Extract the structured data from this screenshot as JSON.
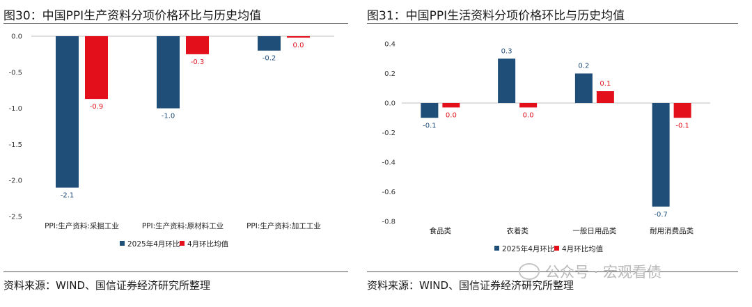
{
  "colors": {
    "series_current": "#1f4e79",
    "series_avg": "#e3101c",
    "axis": "#bfbfbf"
  },
  "left": {
    "title": "图30：中国PPI生产资料分项价格环比与历史均值",
    "source": "资料来源：WIND、国信证券经济研究所整理"
  },
  "right": {
    "title": "图31：中国PPI生活资料分项价格环比与历史均值",
    "source": "资料来源：WIND、国信证券经济研究所整理"
  },
  "watermark": {
    "text": "公众号 · 宏观看债",
    "icon": "wechat-icon"
  },
  "chart_data": [
    {
      "type": "bar",
      "categories": [
        "PPI:生产资料:采掘工业",
        "PPI:生产资料:原材料工业",
        "PPI:生产资料:加工工业"
      ],
      "series": [
        {
          "name": "2025年4月环比",
          "values": [
            -2.1,
            -1.0,
            -0.2
          ],
          "labels": [
            "-2.1",
            "-1.0",
            "-0.2"
          ]
        },
        {
          "name": "4月环比均值",
          "values": [
            -0.87,
            -0.25,
            -0.02
          ],
          "labels": [
            "-0.9",
            "-0.3",
            "0.0"
          ]
        }
      ],
      "ylim": [
        -2.5,
        0.0
      ],
      "yticks": [
        "0.0",
        "-0.5",
        "-1.0",
        "-1.5",
        "-2.0",
        "-2.5"
      ],
      "legend_position": "bottom"
    },
    {
      "type": "bar",
      "categories": [
        "食品类",
        "衣着类",
        "一般日用品类",
        "耐用消费品类"
      ],
      "series": [
        {
          "name": "2025年4月环比",
          "values": [
            -0.1,
            0.3,
            0.2,
            -0.7
          ],
          "labels": [
            "-0.1",
            "0.3",
            "0.2",
            "-0.7"
          ]
        },
        {
          "name": "4月环比均值",
          "values": [
            -0.03,
            -0.03,
            0.08,
            -0.1
          ],
          "labels": [
            "0.0",
            "0.0",
            "0.1",
            "-0.1"
          ]
        }
      ],
      "ylim": [
        -0.8,
        0.4
      ],
      "yticks": [
        "0.4",
        "0.2",
        "0.0",
        "-0.2",
        "-0.4",
        "-0.6",
        "-0.8"
      ],
      "legend_position": "bottom"
    }
  ]
}
